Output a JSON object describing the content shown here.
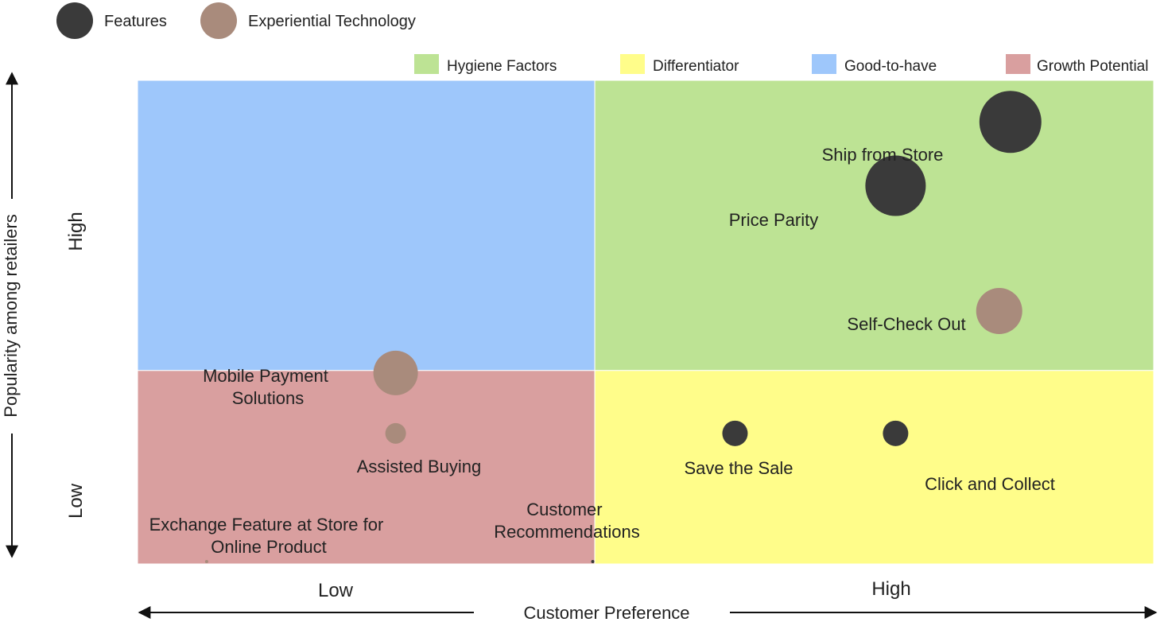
{
  "chart_data": {
    "type": "scatter",
    "subtype": "bubble-quadrant",
    "title": "",
    "xlabel": "Customer Preference",
    "ylabel": "Popularity among retailers",
    "xlim": [
      0,
      1
    ],
    "ylim": [
      0,
      1
    ],
    "x_ticks": [
      "Low",
      "High"
    ],
    "y_ticks": [
      "Low",
      "High"
    ],
    "grid": false,
    "legend": {
      "placement": "top-left",
      "entries": [
        {
          "name": "Features",
          "color": "#3a3a3a"
        },
        {
          "name": "Experiential Technology",
          "color": "#a98b7c"
        }
      ]
    },
    "quadrant_legend": {
      "placement": "top-right",
      "entries": [
        {
          "name": "Hygiene Factors",
          "color": "#bde394"
        },
        {
          "name": "Differentiator",
          "color": "#fffd8a"
        },
        {
          "name": "Good-to-have",
          "color": "#9ec7fb"
        },
        {
          "name": "Growth Potential",
          "color": "#d99f9f"
        }
      ]
    },
    "quadrants": [
      {
        "name": "Good-to-have",
        "x_range": [
          0,
          0.45
        ],
        "y_range": [
          0.4,
          1
        ],
        "color": "#9ec7fb"
      },
      {
        "name": "Hygiene Factors",
        "x_range": [
          0.45,
          1
        ],
        "y_range": [
          0.4,
          1
        ],
        "color": "#bde394"
      },
      {
        "name": "Growth Potential",
        "x_range": [
          0,
          0.45
        ],
        "y_range": [
          0,
          0.4
        ],
        "color": "#d99f9f"
      },
      {
        "name": "Differentiator",
        "x_range": [
          0.45,
          1
        ],
        "y_range": [
          0,
          0.4
        ],
        "color": "#fffd8a"
      }
    ],
    "series": [
      {
        "name": "Features",
        "color": "#3a3a3a",
        "points": [
          {
            "label": "Ship from Store",
            "x": 0.859,
            "y": 0.914,
            "size": 39
          },
          {
            "label": "Price Parity",
            "x": 0.746,
            "y": 0.782,
            "size": 38
          },
          {
            "label": "Save the Sale",
            "x": 0.588,
            "y": 0.27,
            "size": 16
          },
          {
            "label": "Click and Collect",
            "x": 0.746,
            "y": 0.27,
            "size": 16
          },
          {
            "label": "Customer Recommendations",
            "x": 0.448,
            "y": 0.005,
            "size": 2
          }
        ]
      },
      {
        "name": "Experiential Technology",
        "color": "#a98b7c",
        "points": [
          {
            "label": "Self-Check Out",
            "x": 0.848,
            "y": 0.523,
            "size": 29
          },
          {
            "label": "Mobile Payment Solutions",
            "x": 0.254,
            "y": 0.395,
            "size": 28
          },
          {
            "label": "Assisted Buying",
            "x": 0.254,
            "y": 0.27,
            "size": 13
          },
          {
            "label": "Exchange Feature at Store for Online Product",
            "x": 0.068,
            "y": 0.005,
            "size": 2
          }
        ]
      }
    ]
  }
}
